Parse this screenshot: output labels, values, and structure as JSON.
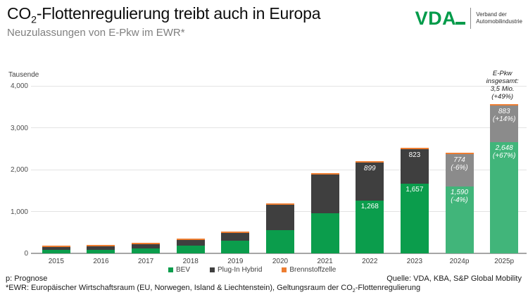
{
  "header": {
    "title_pre": "CO",
    "title_sub": "2",
    "title_post": "-Flottenregulierung treibt auch in Europa",
    "subtitle": "Neuzulassungen von E-Pkw im EWR*"
  },
  "logo": {
    "acronym": "VDA",
    "line1": "Verband der",
    "line2": "Automobilindustrie",
    "green": "#009b4a"
  },
  "chart_data": {
    "type": "bar",
    "stacked": true,
    "unit_label": "Tausende",
    "ylabel": "Tausende",
    "ylim": [
      0,
      4000
    ],
    "grid": true,
    "series_names": [
      "BEV",
      "Plug-In Hybrid",
      "Brennstoffzelle"
    ],
    "colors": {
      "bev": "#0b9d4c",
      "phev": "#3f3f3f",
      "fc": "#ED7D31",
      "bev_forecast": "#41b57a",
      "phev_forecast": "#8b8b8b"
    },
    "y_ticks": [
      {
        "value": 0,
        "label": "0"
      },
      {
        "value": 1000,
        "label": "1,000"
      },
      {
        "value": 2000,
        "label": "2,000"
      },
      {
        "value": 3000,
        "label": "3,000"
      },
      {
        "value": 4000,
        "label": "4,000"
      }
    ],
    "bars": [
      {
        "year": "2015",
        "bev": 85,
        "phev": 60,
        "fc": 3
      },
      {
        "year": "2016",
        "bev": 90,
        "phev": 70,
        "fc": 3
      },
      {
        "year": "2017",
        "bev": 125,
        "phev": 100,
        "fc": 3
      },
      {
        "year": "2018",
        "bev": 190,
        "phev": 130,
        "fc": 3
      },
      {
        "year": "2019",
        "bev": 295,
        "phev": 185,
        "fc": 3
      },
      {
        "year": "2020",
        "bev": 555,
        "phev": 600,
        "fc": 3
      },
      {
        "year": "2021",
        "bev": 950,
        "phev": 930,
        "fc": 3
      },
      {
        "year": "2022",
        "bev": 1268,
        "phev": 899,
        "fc": 3,
        "bev_label": [
          "1,268"
        ],
        "phev_label": [
          "899"
        ],
        "phev_label_italic": true
      },
      {
        "year": "2023",
        "bev": 1657,
        "phev": 823,
        "fc": 3,
        "bev_label": [
          "1,657"
        ],
        "phev_label": [
          "823"
        ]
      },
      {
        "year": "2024p",
        "bev": 1590,
        "phev": 774,
        "fc": 3,
        "forecast": true,
        "bev_label": [
          "1,590",
          "(-4%)"
        ],
        "phev_label": [
          "774",
          "(-6%)"
        ]
      },
      {
        "year": "2025p",
        "bev": 2648,
        "phev": 883,
        "fc": 3,
        "forecast": true,
        "bev_label": [
          "2,648",
          "(+67%)"
        ],
        "phev_label": [
          "883",
          "(+14%)"
        ],
        "annotation": [
          "E-Pkw",
          "insgesamt:",
          "3,5 Mio.",
          "(+49%)"
        ]
      }
    ]
  },
  "legend": {
    "items": [
      {
        "label": "BEV",
        "color": "#0b9d4c"
      },
      {
        "label": "Plug-In Hybrid",
        "color": "#3f3f3f"
      },
      {
        "label": "Brennstoffzelle",
        "color": "#ED7D31"
      }
    ]
  },
  "footer": {
    "prognose": "p: Prognose",
    "source": "Quelle: VDA, KBA, S&P Global Mobility",
    "footnote_pre": "*EWR: Europäischer Wirtschaftsraum (EU, Norwegen, Island & Liechtenstein), Geltungsraum der CO",
    "footnote_sub": "2",
    "footnote_post": "-Flottenregulierung"
  }
}
